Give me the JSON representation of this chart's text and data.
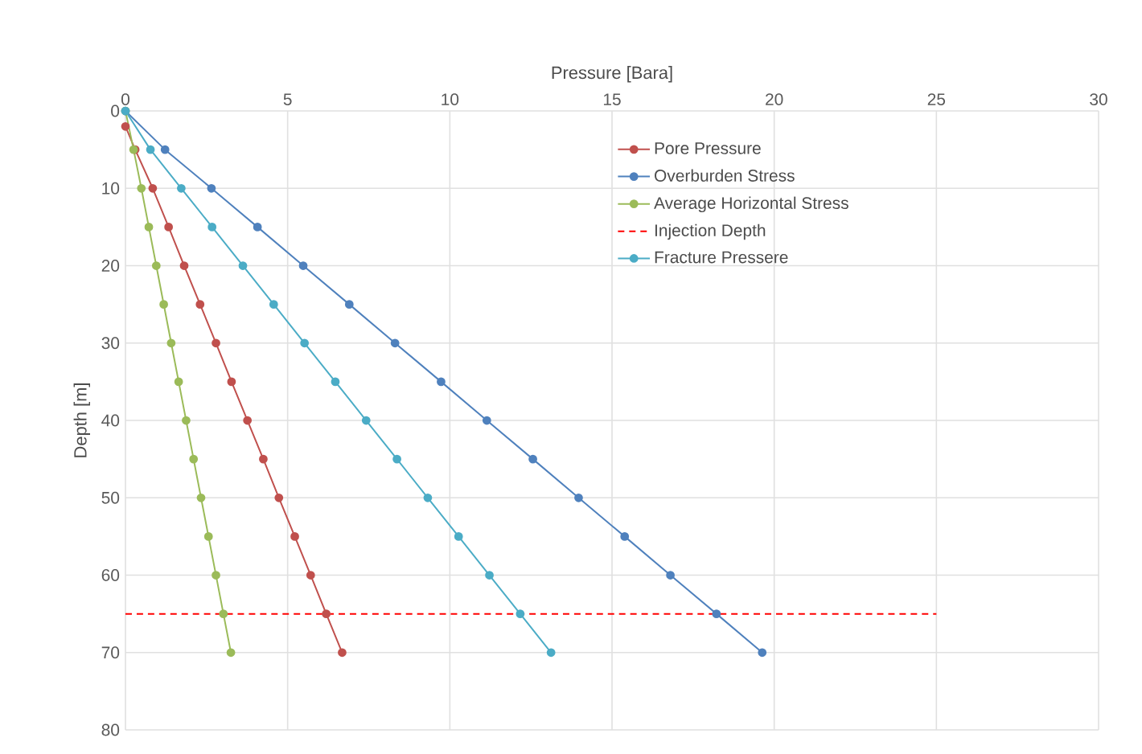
{
  "chart_data": {
    "type": "line",
    "xlabel": "Pressure [Bara]",
    "ylabel": "Depth [m]",
    "xlim": [
      0,
      30
    ],
    "xticks": [
      0,
      5,
      10,
      15,
      20,
      25,
      30
    ],
    "ylim": [
      80,
      0
    ],
    "yticks": [
      0,
      10,
      20,
      30,
      40,
      50,
      60,
      70,
      80
    ],
    "grid": true,
    "legend": "top right",
    "marker": "circle",
    "line_style": "solid",
    "series": [
      {
        "name": "Pore Pressure",
        "color": "#c0504d",
        "x": [
          0,
          0.3,
          0.84,
          1.33,
          1.81,
          2.3,
          2.79,
          3.27,
          3.76,
          4.25,
          4.73,
          5.22,
          5.71,
          6.19,
          6.68
        ],
        "values": [
          2,
          5,
          10,
          15,
          20,
          25,
          30,
          35,
          40,
          45,
          50,
          55,
          60,
          65,
          70
        ]
      },
      {
        "name": "Overburden Stress",
        "color": "#4f81bd",
        "x": [
          0,
          1.22,
          2.65,
          4.07,
          5.48,
          6.9,
          8.31,
          9.73,
          11.14,
          12.56,
          13.97,
          15.39,
          16.8,
          18.22,
          19.63
        ],
        "values": [
          0,
          5,
          10,
          15,
          20,
          25,
          30,
          35,
          40,
          45,
          50,
          55,
          60,
          65,
          70
        ]
      },
      {
        "name": "Average Horizontal Stress",
        "color": "#9bbb59",
        "x": [
          0,
          0.25,
          0.49,
          0.72,
          0.95,
          1.18,
          1.41,
          1.64,
          1.87,
          2.1,
          2.33,
          2.56,
          2.79,
          3.02,
          3.25
        ],
        "values": [
          0,
          5,
          10,
          15,
          20,
          25,
          30,
          35,
          40,
          45,
          50,
          55,
          60,
          65,
          70
        ]
      },
      {
        "name": "Injection Depth",
        "color": "#ff0000",
        "type": "line",
        "marker": "none",
        "line_style": "dashed",
        "x": [
          0,
          25
        ],
        "values": [
          65,
          65
        ]
      },
      {
        "name": "Fracture Pressere",
        "color": "#4bacc6",
        "x": [
          0,
          0.77,
          1.72,
          2.67,
          3.62,
          4.57,
          5.52,
          6.47,
          7.42,
          8.37,
          9.32,
          10.27,
          11.22,
          12.17,
          13.12
        ],
        "values": [
          0,
          5,
          10,
          15,
          20,
          25,
          30,
          35,
          40,
          45,
          50,
          55,
          60,
          65,
          70
        ]
      }
    ]
  }
}
